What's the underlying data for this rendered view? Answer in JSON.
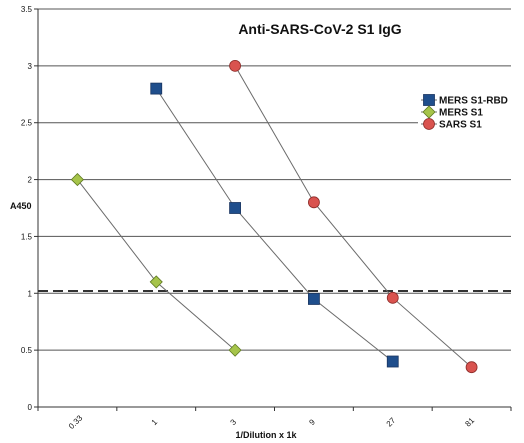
{
  "chart_data": {
    "type": "line",
    "title": "Anti-SARS-CoV-2 S1 IgG",
    "xlabel": "1/Dilution x 1k",
    "ylabel": "A450",
    "x_categories": [
      "0.33",
      "1",
      "3",
      "9",
      "27",
      "81"
    ],
    "y_ticks": [
      "0",
      "0.5",
      "1",
      "1.5",
      "2",
      "2.5",
      "3",
      "3.5"
    ],
    "ylim": [
      0,
      3.5
    ],
    "grid": "horizontal",
    "legend_position": "right",
    "cutoff": {
      "value": 1.02,
      "style": "dashed",
      "color": "#333333"
    },
    "series": [
      {
        "name": "MERS S1-RBD",
        "marker": "square",
        "color": "#1F4E8C",
        "points": [
          {
            "x": "1",
            "y": 2.8
          },
          {
            "x": "3",
            "y": 1.75
          },
          {
            "x": "9",
            "y": 0.95
          },
          {
            "x": "27",
            "y": 0.4
          }
        ]
      },
      {
        "name": "MERS S1",
        "marker": "diamond",
        "color": "#A6C44A",
        "points": [
          {
            "x": "0.33",
            "y": 2.0
          },
          {
            "x": "1",
            "y": 1.1
          },
          {
            "x": "3",
            "y": 0.5
          }
        ]
      },
      {
        "name": "SARS S1",
        "marker": "circle",
        "color": "#D9534F",
        "points": [
          {
            "x": "3",
            "y": 3.0
          },
          {
            "x": "9",
            "y": 1.8
          },
          {
            "x": "27",
            "y": 0.96
          },
          {
            "x": "81",
            "y": 0.35
          }
        ]
      }
    ]
  }
}
